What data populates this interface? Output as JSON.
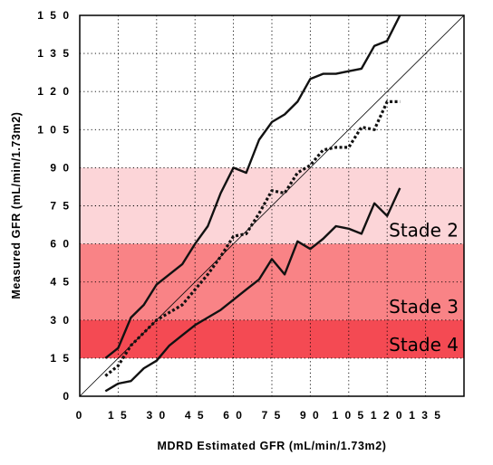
{
  "chart_data": {
    "type": "line",
    "xlabel": "MDRD Estimated GFR (mL/min/1.73m2)",
    "ylabel": "Measured GFR (mL/min/1.73m2)",
    "xlim": [
      0,
      150
    ],
    "ylim": [
      0,
      150
    ],
    "x_ticks": [
      "0",
      "15",
      "30",
      "45",
      "60",
      "75",
      "90",
      "105",
      "120",
      "135"
    ],
    "y_ticks": [
      "0",
      "15",
      "30",
      "45",
      "60",
      "75",
      "90",
      "105",
      "120",
      "135",
      "150"
    ],
    "x_tick_values": [
      0,
      15,
      30,
      45,
      60,
      75,
      90,
      105,
      120,
      135
    ],
    "y_tick_values": [
      0,
      15,
      30,
      45,
      60,
      75,
      90,
      105,
      120,
      135,
      150
    ],
    "x_tick_text": [
      "0",
      "1 5",
      "3 0",
      "4 5",
      "6 0",
      "7 5",
      "9 0",
      "1 0 5",
      "1 2 0",
      "1 3 5"
    ],
    "y_tick_text": [
      "0",
      "1 5",
      "3 0",
      "4 5",
      "6 0",
      "7 5",
      "9 0",
      "1 0 5",
      "1 2 0",
      "1 3 5",
      "1 5 0"
    ],
    "grid": true,
    "identity_line": true,
    "bands": [
      {
        "label": "Stade 2",
        "y_range": [
          60,
          90
        ],
        "color": "#fcd5d8"
      },
      {
        "label": "Stade 3",
        "y_range": [
          30,
          60
        ],
        "color": "#f98386"
      },
      {
        "label": "Stade 4",
        "y_range": [
          15,
          30
        ],
        "color": "#f44a53"
      }
    ],
    "series": [
      {
        "style": "solid",
        "x": [
          10,
          15,
          20,
          25,
          30,
          35,
          40,
          45,
          50,
          55,
          60,
          65,
          70,
          75,
          80,
          85,
          90,
          95,
          100,
          105,
          110,
          115,
          120,
          125
        ],
        "y": [
          2,
          5,
          6,
          11,
          14,
          20,
          24,
          28,
          31,
          34,
          38,
          42,
          46,
          54,
          48,
          61,
          58,
          62,
          67,
          66,
          64,
          76,
          71,
          82
        ]
      },
      {
        "style": "dotted",
        "x": [
          10,
          15,
          20,
          25,
          30,
          35,
          40,
          45,
          50,
          55,
          60,
          65,
          70,
          75,
          80,
          85,
          90,
          95,
          100,
          105,
          110,
          115,
          120,
          125
        ],
        "y": [
          8,
          12,
          20,
          25,
          30,
          33,
          36,
          42,
          48,
          55,
          63,
          64,
          72,
          81,
          80,
          88,
          91,
          97,
          98,
          98,
          106,
          105,
          116,
          116
        ]
      },
      {
        "style": "solid",
        "x": [
          10,
          15,
          20,
          25,
          30,
          35,
          40,
          45,
          50,
          55,
          60,
          65,
          70,
          75,
          80,
          85,
          90,
          95,
          100,
          105,
          110,
          115,
          120,
          125
        ],
        "y": [
          15,
          19,
          31,
          36,
          44,
          48,
          52,
          60,
          67,
          80,
          90,
          88,
          101,
          108,
          111,
          116,
          125,
          127,
          127,
          128,
          129,
          138,
          140,
          150
        ]
      }
    ]
  },
  "colors": {
    "band_stade2": "#fcd5d8",
    "band_stade3": "#f98386",
    "band_stade4": "#f44a53",
    "line": "#111111",
    "grid": "#000000"
  }
}
